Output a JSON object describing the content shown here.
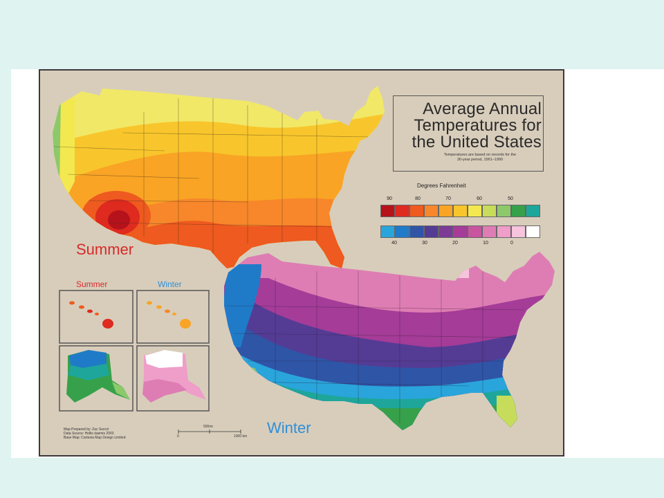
{
  "map": {
    "title_lines": [
      "Average Annual",
      "Temperatures for",
      "the United States"
    ],
    "subtitle_lines": [
      "Temperatures are based on records for the",
      "30-year period, 1961–1990"
    ],
    "legend": {
      "title": "Degrees Fahrenheit",
      "top_ticks": [
        "90",
        "80",
        "70",
        "60",
        "50"
      ],
      "bottom_ticks": [
        "40",
        "30",
        "20",
        "10",
        "0"
      ],
      "summer_colors": [
        "#b5121b",
        "#de2a1f",
        "#ee5a1f",
        "#f7872a",
        "#f9a424",
        "#f8c62c",
        "#f3e84f",
        "#c7dc5b",
        "#8dc96a",
        "#36a14a",
        "#1ea69b"
      ],
      "winter_colors": [
        "#29a5dc",
        "#1f7bc8",
        "#2f55a7",
        "#543c95",
        "#7c3b96",
        "#a53c98",
        "#c8559f",
        "#de7db3",
        "#ee9ec8",
        "#f6c4dc",
        "#ffffff"
      ]
    },
    "summer_label": "Summer",
    "winter_label": "Winter",
    "insets": {
      "summer_label": "Summer",
      "winter_label": "Winter"
    },
    "credits": [
      "Map Prepared by: Zac Surcol",
      "Data Source: Hollis dasmis 2003",
      "Base Map: Cartesia Map Design Limited"
    ],
    "scale": {
      "top": "500mi",
      "left": "0",
      "right": "1000 km"
    }
  }
}
